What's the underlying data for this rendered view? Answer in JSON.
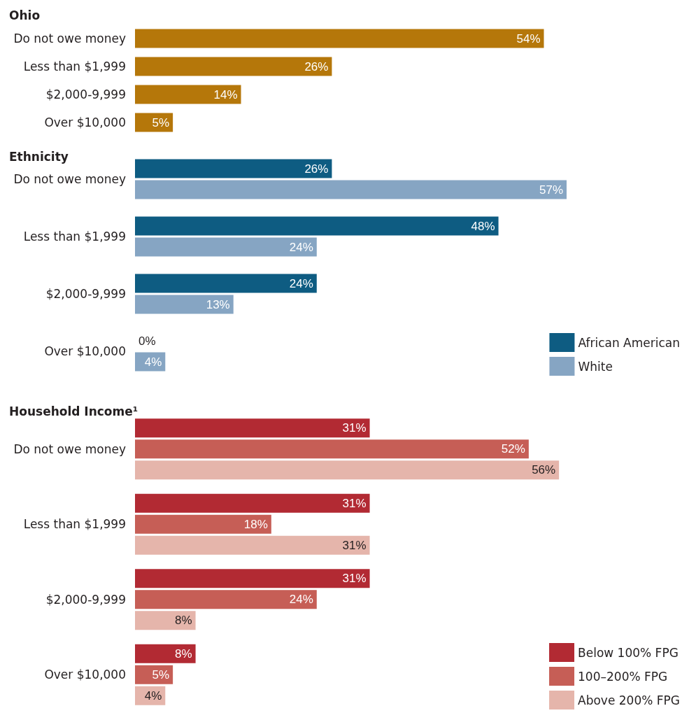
{
  "chart_data": [
    {
      "type": "bar",
      "orientation": "horizontal",
      "title": "Ohio",
      "categories": [
        "Do not owe money",
        "Less than $1,999",
        "$2,000-9,999",
        "Over $10,000"
      ],
      "legend": false,
      "series": [
        {
          "color": "#b5770a",
          "values": [
            54,
            26,
            14,
            5
          ],
          "value_labels": [
            "54%",
            "26%",
            "14%",
            "5%"
          ]
        }
      ]
    },
    {
      "type": "bar",
      "orientation": "horizontal",
      "title": "Ethnicity",
      "categories": [
        "Do not owe money",
        "Less than $1,999",
        "$2,000-9,999",
        "Over $10,000"
      ],
      "legend": "bottom right",
      "series": [
        {
          "name": "African American",
          "color": "#0e5c82",
          "values": [
            26,
            48,
            24,
            0
          ],
          "value_labels": [
            "26%",
            "48%",
            "24%",
            "0%"
          ]
        },
        {
          "name": "White",
          "color": "#86a5c3",
          "values": [
            57,
            24,
            13,
            4
          ],
          "value_labels": [
            "57%",
            "24%",
            "13%",
            "4%"
          ]
        }
      ]
    },
    {
      "type": "bar",
      "orientation": "horizontal",
      "title": "Household Income¹",
      "categories": [
        "Do not owe money",
        "Less than $1,999",
        "$2,000-9,999",
        "Over $10,000"
      ],
      "legend": "bottom right",
      "series": [
        {
          "name": "Below 100% FPG",
          "color": "#b22a33",
          "values": [
            31,
            31,
            31,
            8
          ],
          "value_labels": [
            "31%",
            "31%",
            "31%",
            "8%"
          ]
        },
        {
          "name": "100–200% FPG",
          "color": "#c65e56",
          "values": [
            52,
            18,
            24,
            5
          ],
          "value_labels": [
            "52%",
            "18%",
            "24%",
            "5%"
          ]
        },
        {
          "name": "Above 200% FPG",
          "color": "#e5b5ab",
          "values": [
            56,
            31,
            8,
            4
          ],
          "value_labels": [
            "56%",
            "31%",
            "8%",
            "4%"
          ]
        }
      ]
    }
  ]
}
